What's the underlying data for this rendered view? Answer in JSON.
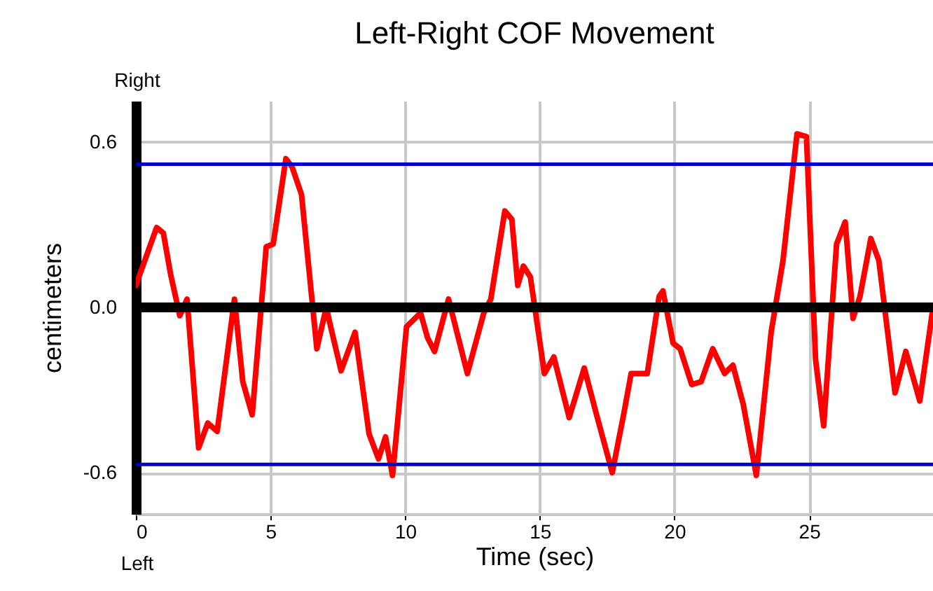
{
  "chart_data": {
    "type": "line",
    "title": "Left-Right COF Movement",
    "xlabel": "Time (sec)",
    "ylabel": "centimeters",
    "annotations": [
      "Right",
      "Left"
    ],
    "xlim": [
      0,
      29.6
    ],
    "xticks": [
      0,
      5,
      10,
      15,
      20,
      25
    ],
    "ylim": [
      -0.75,
      0.75
    ],
    "yticks": [
      -0.6,
      {
        "value": 0,
        "label": "0.0"
      },
      0.6
    ],
    "grid": true,
    "ref_lines": [
      {
        "axis": "y",
        "value": 0,
        "color": "#000000"
      },
      {
        "axis": "y",
        "value": 0.52,
        "color": "#0000cc"
      },
      {
        "axis": "y",
        "value": -0.57,
        "color": "#0000cc"
      }
    ],
    "series": [
      {
        "color": "#ff0000",
        "x": [
          0,
          0.77,
          1.02,
          1.29,
          1.63,
          1.9,
          2.33,
          2.67,
          3.02,
          3.66,
          3.97,
          4.32,
          4.84,
          5.1,
          5.57,
          5.8,
          6.15,
          6.72,
          7.07,
          7.28,
          7.62,
          8.14,
          8.66,
          9.01,
          9.27,
          9.53,
          10.05,
          10.57,
          10.83,
          11.09,
          11.61,
          12.31,
          12.92,
          13.18,
          13.7,
          13.96,
          14.18,
          14.39,
          14.65,
          15.17,
          15.52,
          16.09,
          16.65,
          17.08,
          17.69,
          18.13,
          18.39,
          18.99,
          19.43,
          19.57,
          19.95,
          20.21,
          20.64,
          20.99,
          21.42,
          21.86,
          22.17,
          22.55,
          23.04,
          23.59,
          24.03,
          24.55,
          24.9,
          25.24,
          25.54,
          26.02,
          26.34,
          26.63,
          26.89,
          27.29,
          27.59,
          28.19,
          28.59,
          29.11,
          29.6
        ],
        "values": [
          0.08,
          0.29,
          0.27,
          0.12,
          -0.03,
          0.03,
          -0.51,
          -0.42,
          -0.45,
          0.03,
          -0.27,
          -0.39,
          0.22,
          0.23,
          0.54,
          0.51,
          0.41,
          -0.15,
          0.0,
          -0.09,
          -0.23,
          -0.09,
          -0.46,
          -0.55,
          -0.47,
          -0.61,
          -0.07,
          -0.02,
          -0.11,
          -0.16,
          0.03,
          -0.24,
          -0.02,
          0.03,
          0.35,
          0.32,
          0.08,
          0.15,
          0.11,
          -0.24,
          -0.18,
          -0.4,
          -0.22,
          -0.38,
          -0.6,
          -0.38,
          -0.24,
          -0.24,
          0.04,
          0.06,
          -0.13,
          -0.15,
          -0.28,
          -0.27,
          -0.15,
          -0.24,
          -0.21,
          -0.35,
          -0.61,
          -0.09,
          0.17,
          0.63,
          0.62,
          -0.19,
          -0.43,
          0.23,
          0.31,
          -0.04,
          0.04,
          0.25,
          0.17,
          -0.31,
          -0.16,
          -0.34,
          0.0
        ]
      }
    ]
  }
}
